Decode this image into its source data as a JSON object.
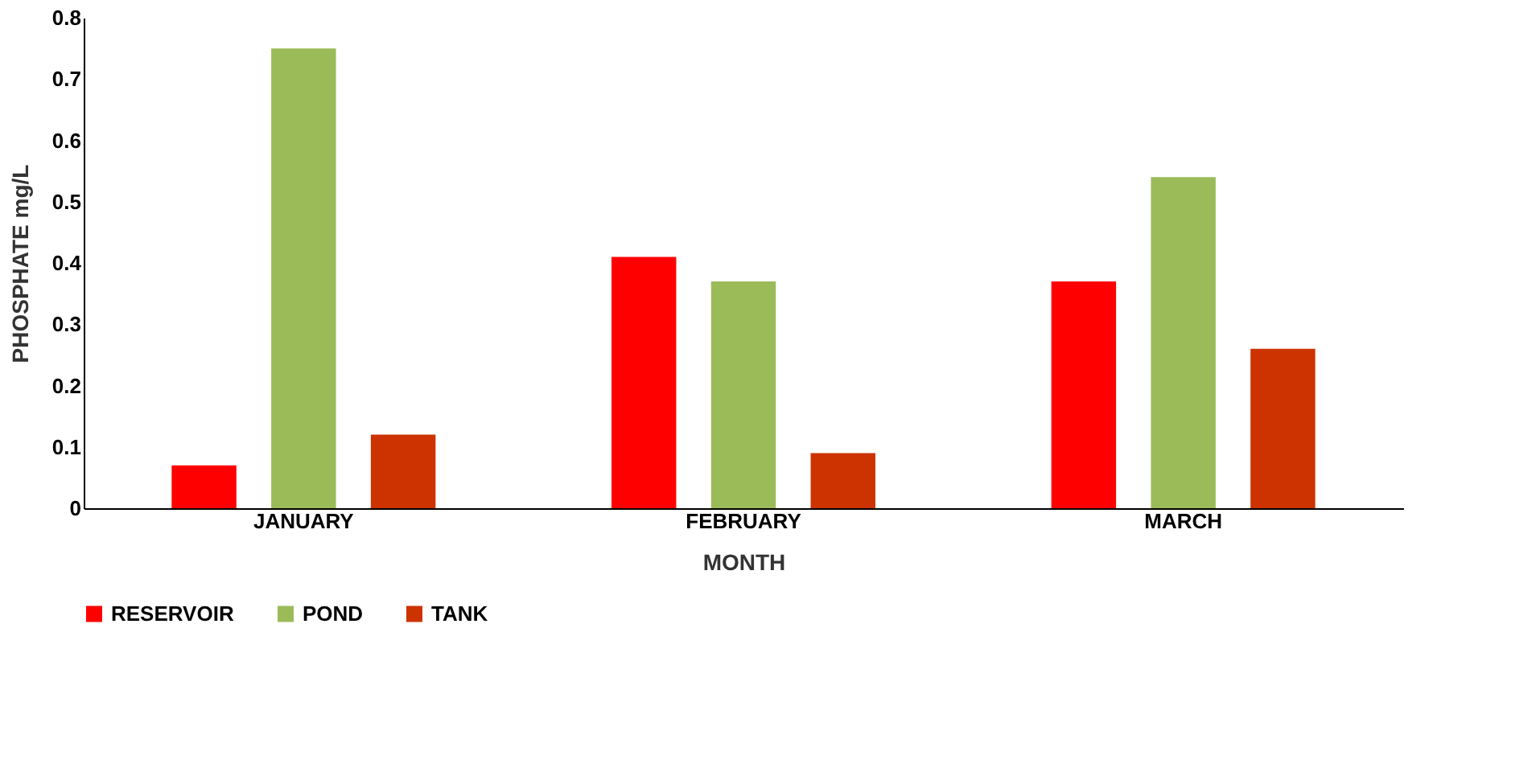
{
  "chart_data": {
    "type": "bar",
    "xlabel": "MONTH",
    "ylabel": "PHOSPHATE  mg/L",
    "categories": [
      "JANUARY",
      "FEBRUARY",
      "MARCH"
    ],
    "series": [
      {
        "name": "RESERVOIR",
        "color": "#ff0000",
        "values": [
          0.07,
          0.41,
          0.37
        ]
      },
      {
        "name": "POND",
        "color": "#9bbb59",
        "values": [
          0.75,
          0.37,
          0.54
        ]
      },
      {
        "name": "TANK",
        "color": "#cc3300",
        "values": [
          0.12,
          0.09,
          0.26
        ]
      }
    ],
    "ylim": [
      0,
      0.8
    ],
    "yticks": [
      0,
      0.1,
      0.2,
      0.3,
      0.4,
      0.5,
      0.6,
      0.7,
      0.8
    ],
    "grid": false,
    "legend": "bottom"
  }
}
